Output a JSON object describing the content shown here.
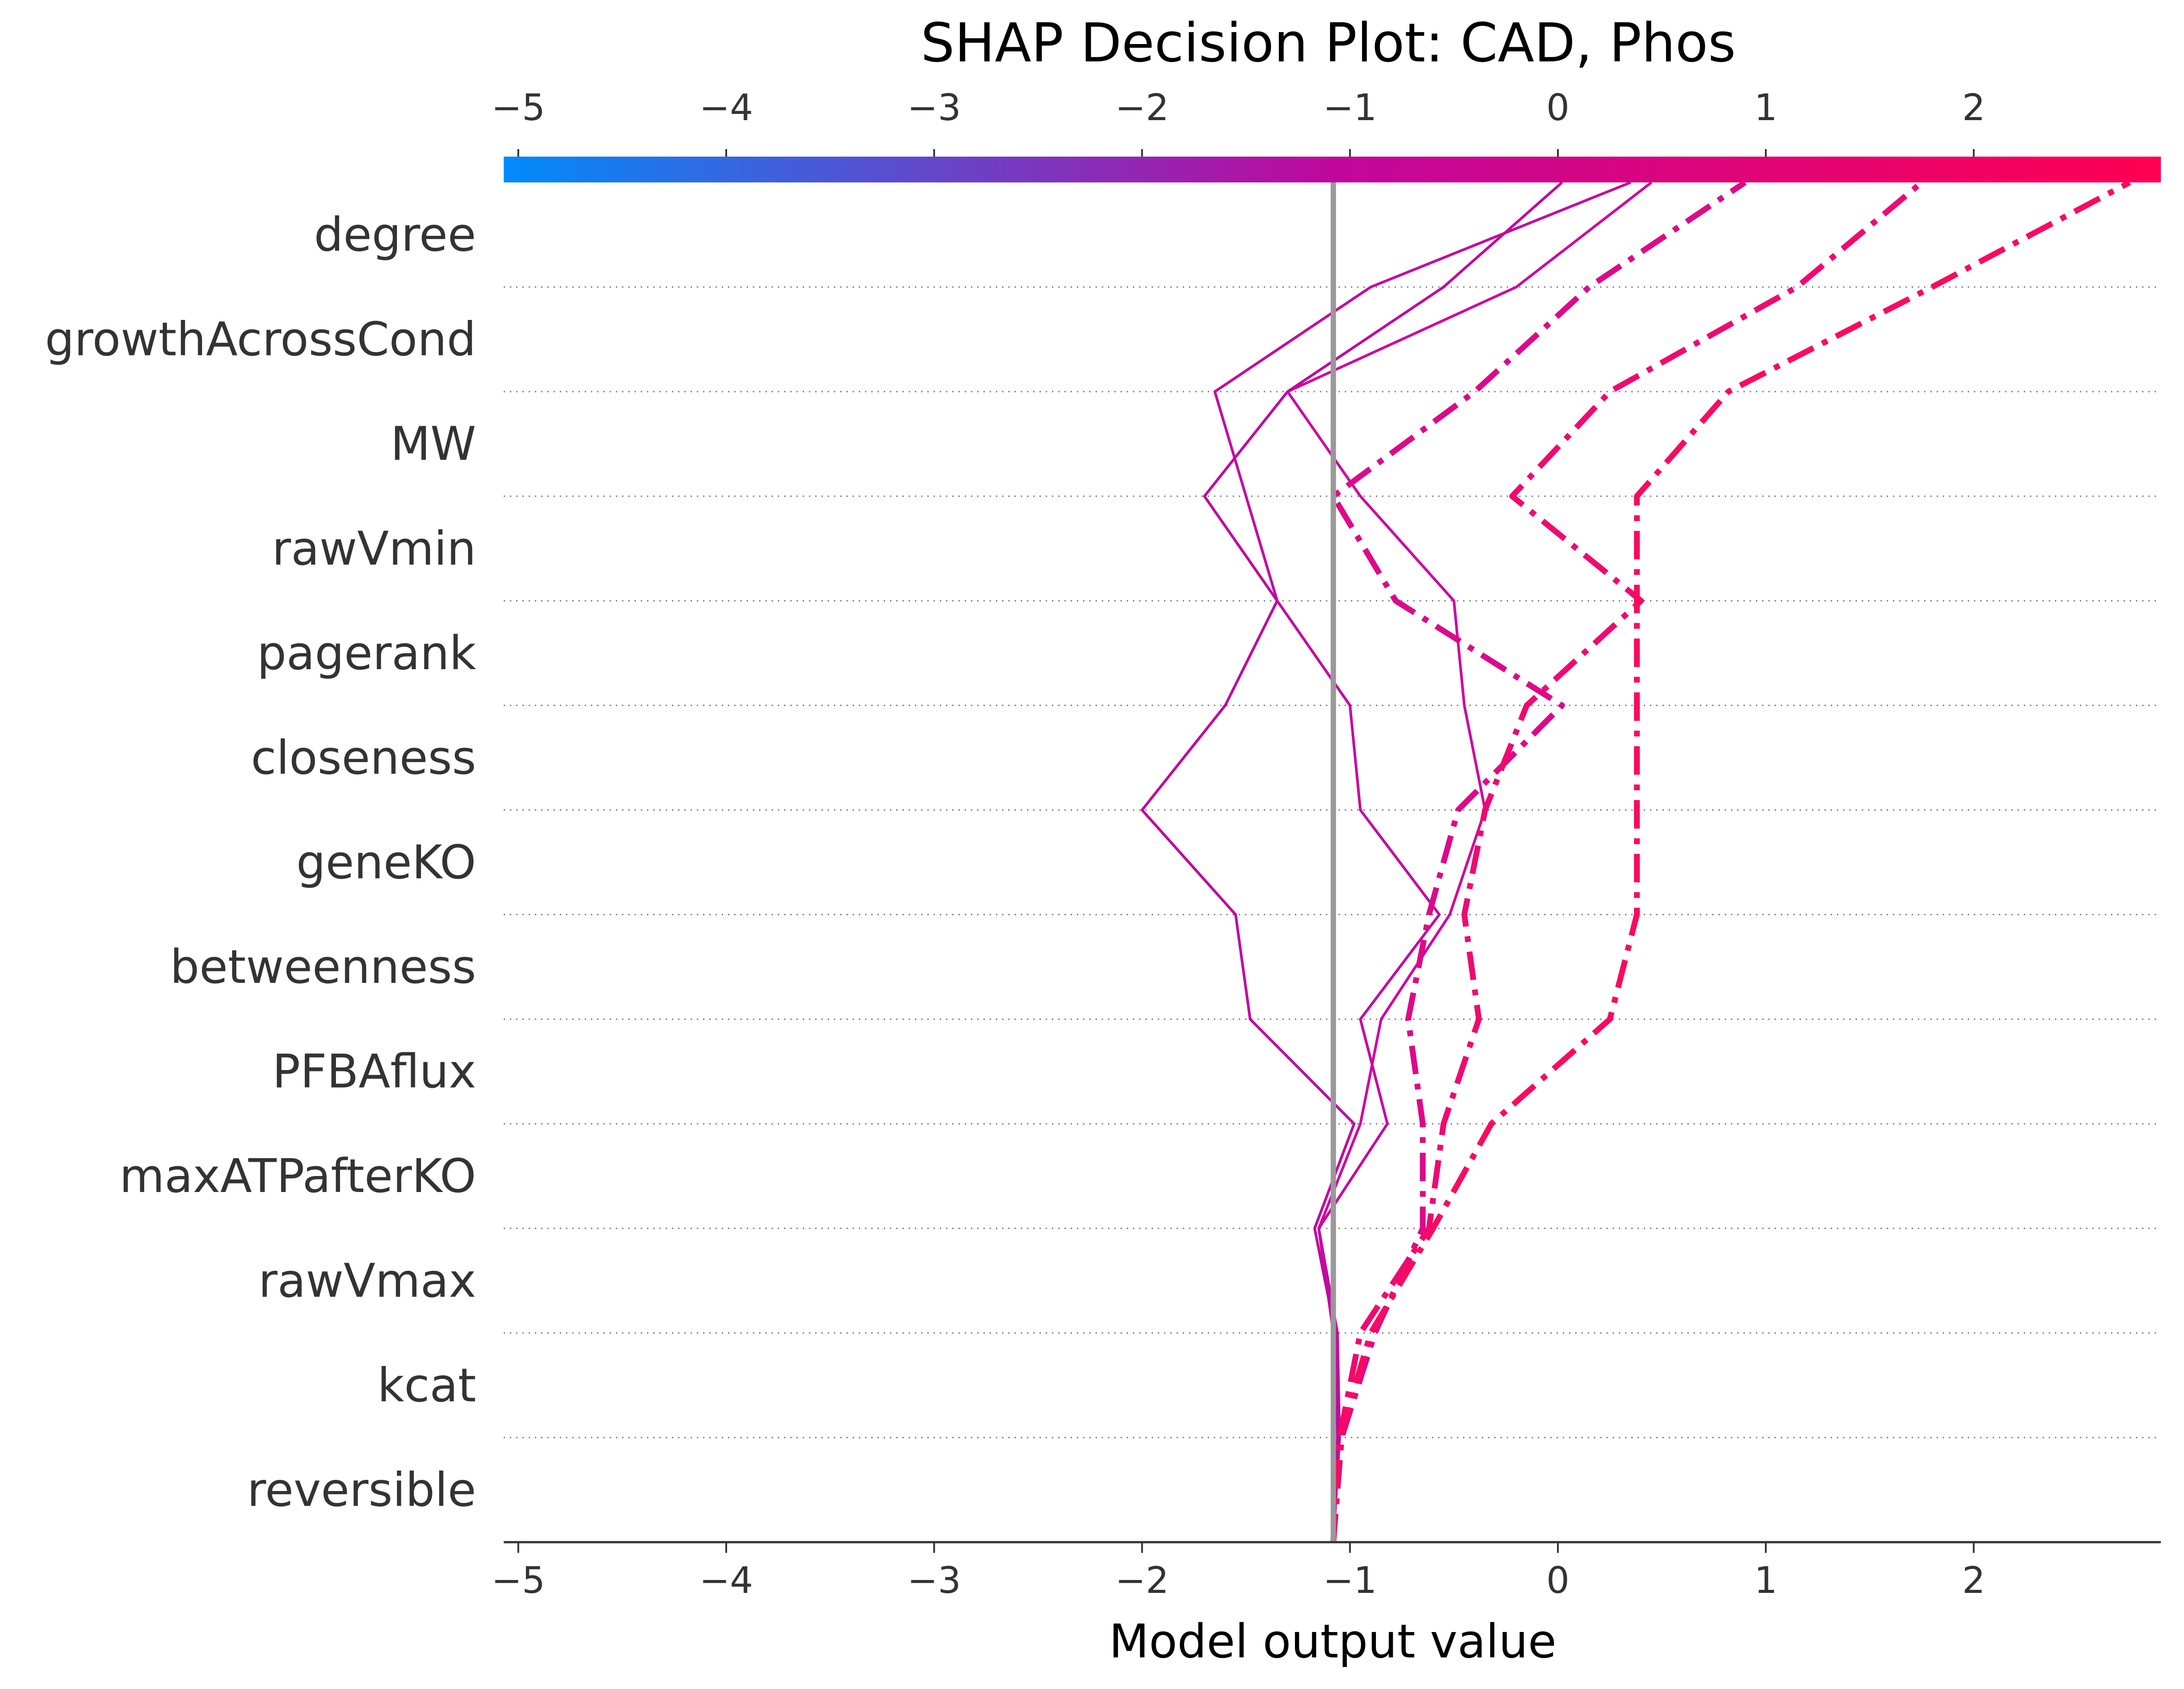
{
  "chart_data": {
    "type": "line",
    "title": "SHAP Decision Plot: CAD, Phos",
    "xlabel": "Model output value",
    "ylabel": "",
    "xlim": [
      -5.07,
      2.9
    ],
    "xticks": [
      -5,
      -4,
      -3,
      -2,
      -1,
      0,
      1,
      2
    ],
    "xtick_labels": [
      "−5",
      "−4",
      "−3",
      "−2",
      "−1",
      "0",
      "1",
      "2"
    ],
    "base_value": -1.08,
    "colorbar": {
      "min": -5.07,
      "max": 2.9,
      "low_color": "#008bfb",
      "mid_color": "#c0079c",
      "high_color": "#ff0052"
    },
    "features": [
      "degree",
      "growthAcrossCond",
      "MW",
      "rawVmin",
      "pagerank",
      "closeness",
      "geneKO",
      "betweenness",
      "PFBAflux",
      "maxATPafterKO",
      "rawVmax",
      "kcat",
      "reversible"
    ],
    "grid": "dotted row lines",
    "series": [
      {
        "values": [
          -1.08,
          -1.05,
          -1.08,
          -1.15,
          -0.95,
          -0.85,
          -0.52,
          -0.35,
          -0.45,
          -0.5,
          -0.95,
          -1.3,
          -0.2,
          0.45
        ],
        "style": "solid",
        "color": "#cc0a9e"
      },
      {
        "values": [
          -1.08,
          -1.05,
          -1.06,
          -1.15,
          -0.82,
          -0.95,
          -0.57,
          -0.95,
          -1.0,
          -1.35,
          -1.5,
          -1.65,
          -0.9,
          0.35
        ],
        "style": "solid",
        "color": "#c40ba0"
      },
      {
        "values": [
          -1.08,
          -1.06,
          -1.07,
          -1.17,
          -0.98,
          -1.48,
          -1.55,
          -2.0,
          -1.6,
          -1.35,
          -1.7,
          -1.3,
          -0.55,
          0.02
        ],
        "style": "solid",
        "color": "#c008a0"
      },
      {
        "values": [
          -1.08,
          -1.04,
          -0.88,
          -0.65,
          -0.65,
          -0.72,
          -0.62,
          -0.48,
          0.02,
          -0.78,
          -1.08,
          -0.4,
          0.15,
          0.9
        ],
        "style": "dashdot",
        "color": "#db0a8a"
      },
      {
        "values": [
          -1.08,
          -1.05,
          -0.95,
          -0.62,
          -0.55,
          -0.38,
          -0.45,
          -0.35,
          -0.15,
          0.4,
          -0.22,
          0.25,
          1.15,
          1.75
        ],
        "style": "dashdot",
        "color": "#ee0a70"
      },
      {
        "values": [
          -1.08,
          -1.05,
          -0.9,
          -0.6,
          -0.32,
          0.25,
          0.38,
          0.38,
          0.38,
          0.38,
          0.38,
          0.82,
          1.8,
          2.75
        ],
        "style": "dashdot",
        "color": "#f90a60"
      }
    ]
  }
}
